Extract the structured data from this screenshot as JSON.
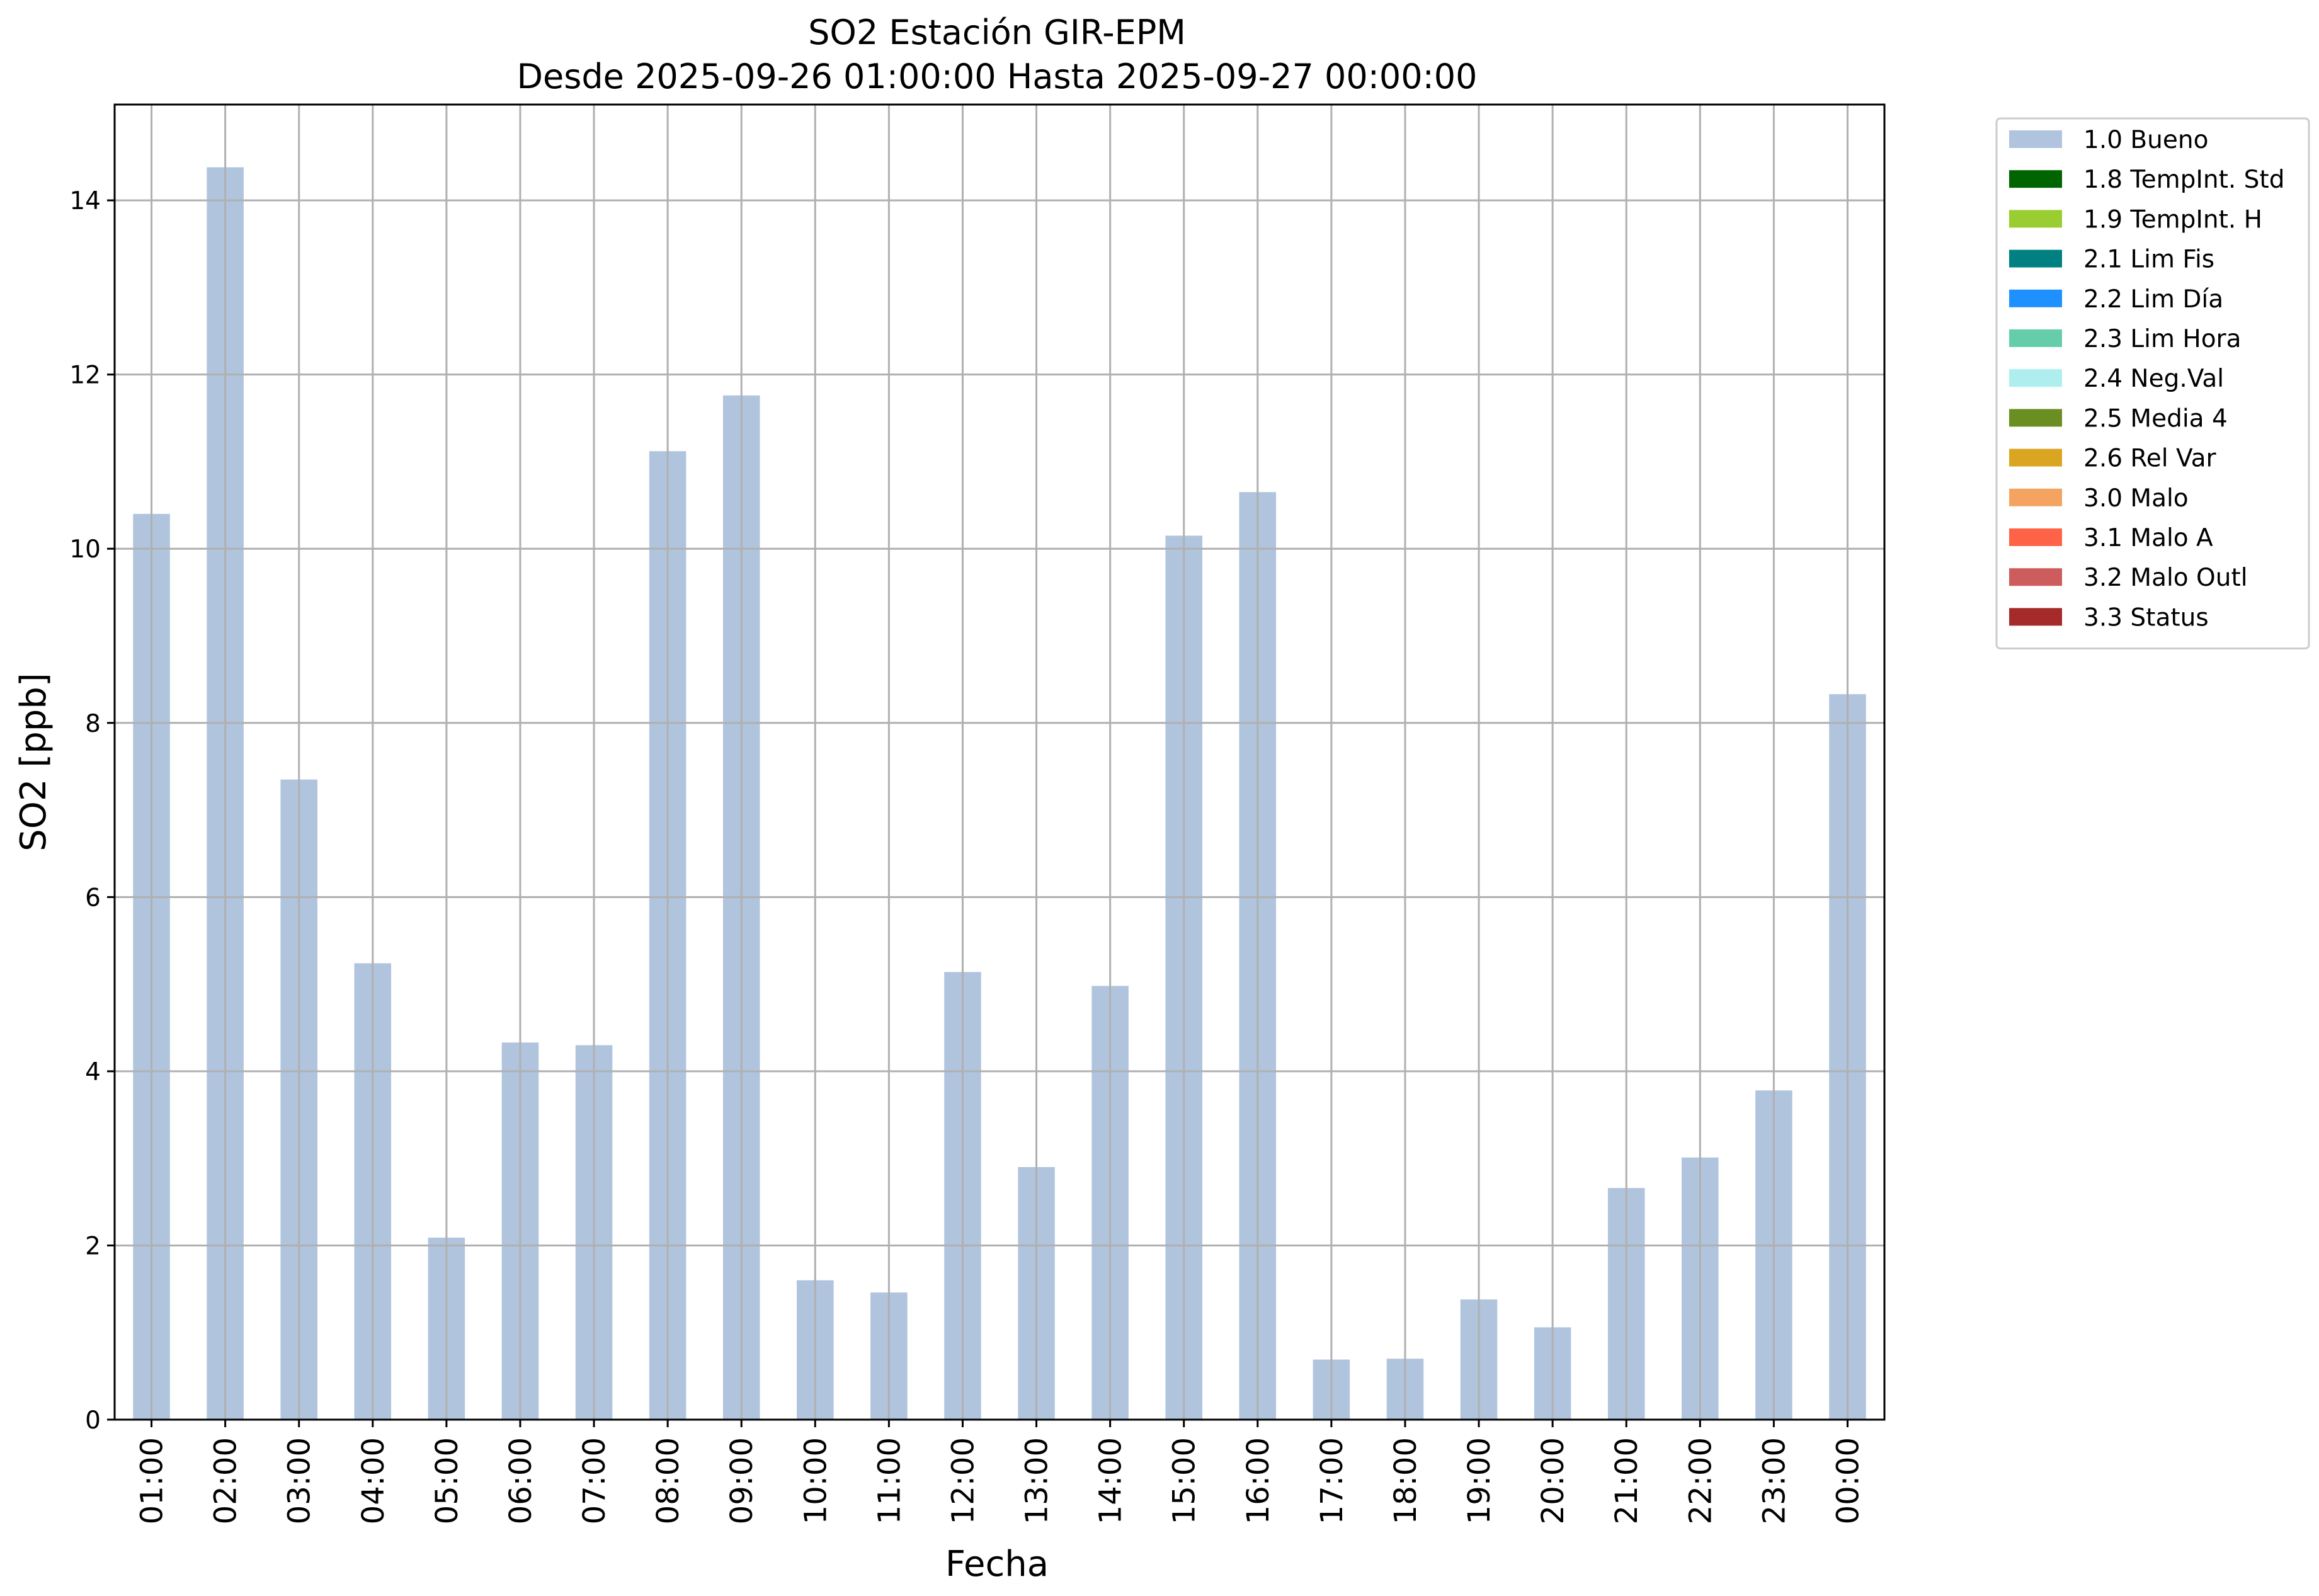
{
  "chart_data": {
    "type": "bar",
    "title": "SO2 Estación GIR-EPM",
    "subtitle": "Desde 2025-09-26 01:00:00 Hasta 2025-09-27 00:00:00",
    "xlabel": "Fecha",
    "ylabel": "SO2 [ppb]",
    "ylim": [
      0,
      15.1
    ],
    "yticks": [
      0,
      2,
      4,
      6,
      8,
      10,
      12,
      14
    ],
    "grid": true,
    "legend_position": "outside-top-right",
    "categories": [
      "01:00",
      "02:00",
      "03:00",
      "04:00",
      "05:00",
      "06:00",
      "07:00",
      "08:00",
      "09:00",
      "10:00",
      "11:00",
      "12:00",
      "13:00",
      "14:00",
      "15:00",
      "16:00",
      "17:00",
      "18:00",
      "19:00",
      "20:00",
      "21:00",
      "22:00",
      "23:00",
      "00:00"
    ],
    "series": [
      {
        "name": "1.0 Bueno",
        "color": "#b0c4de",
        "values": [
          10.4,
          14.38,
          7.35,
          5.24,
          2.09,
          4.33,
          4.3,
          11.12,
          11.76,
          1.6,
          1.46,
          5.14,
          2.9,
          4.98,
          10.15,
          10.65,
          0.69,
          0.7,
          1.38,
          1.06,
          2.66,
          3.01,
          3.78,
          8.33
        ]
      }
    ],
    "legend": [
      {
        "label": "1.0 Bueno",
        "color": "#b0c4de"
      },
      {
        "label": "1.8 TempInt. Std",
        "color": "#006400"
      },
      {
        "label": "1.9 TempInt. H",
        "color": "#9acd32"
      },
      {
        "label": "2.1 Lim Fis",
        "color": "#008080"
      },
      {
        "label": "2.2 Lim Día",
        "color": "#1e90ff"
      },
      {
        "label": "2.3 Lim Hora",
        "color": "#66cdaa"
      },
      {
        "label": "2.4 Neg.Val",
        "color": "#afeeee"
      },
      {
        "label": "2.5 Media 4",
        "color": "#6b8e23"
      },
      {
        "label": "2.6 Rel Var",
        "color": "#daa520"
      },
      {
        "label": "3.0 Malo",
        "color": "#f4a460"
      },
      {
        "label": "3.1 Malo A",
        "color": "#ff6347"
      },
      {
        "label": "3.2 Malo Outl",
        "color": "#cd5c5c"
      },
      {
        "label": "3.3 Status",
        "color": "#a52a2a"
      }
    ]
  }
}
